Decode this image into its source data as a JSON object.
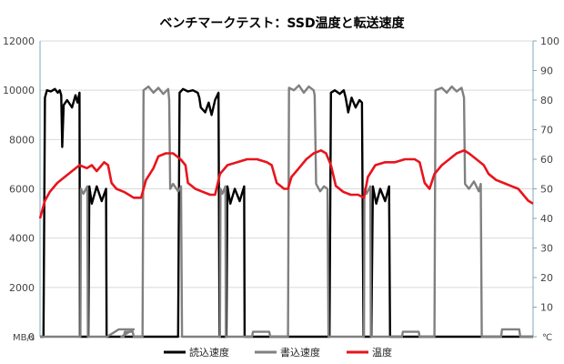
{
  "chart_data": {
    "type": "line",
    "title": "ベンチマークテスト：SSD温度と転送速度",
    "y_left_label": "MB/s",
    "y_right_label": "℃",
    "y_left_range": [
      0,
      12000
    ],
    "y_right_range": [
      0,
      100
    ],
    "y_left_ticks": [
      "0",
      "2000",
      "4000",
      "6000",
      "8000",
      "10000",
      "12000"
    ],
    "y_right_ticks": [
      "0",
      "10",
      "20",
      "30",
      "40",
      "50",
      "60",
      "70",
      "80",
      "90",
      "100"
    ],
    "x_range": [
      0,
      100
    ],
    "grid": true,
    "legend_position": "bottom",
    "series": [
      {
        "name": "読込速度",
        "axis": "left",
        "color": "#000000",
        "points": [
          [
            0,
            0
          ],
          [
            0.7,
            0
          ],
          [
            1.0,
            9700
          ],
          [
            1.4,
            10000
          ],
          [
            2.2,
            9950
          ],
          [
            3.0,
            10050
          ],
          [
            3.6,
            9900
          ],
          [
            4.0,
            10000
          ],
          [
            4.3,
            9800
          ],
          [
            4.5,
            7700
          ],
          [
            4.8,
            9400
          ],
          [
            5.5,
            9600
          ],
          [
            6.5,
            9300
          ],
          [
            7.2,
            9800
          ],
          [
            7.6,
            9500
          ],
          [
            8.0,
            9900
          ],
          [
            8.1,
            0
          ],
          [
            9.8,
            0
          ],
          [
            10.0,
            6100
          ],
          [
            10.5,
            5400
          ],
          [
            11.5,
            6100
          ],
          [
            12.5,
            5500
          ],
          [
            13.4,
            6000
          ],
          [
            13.5,
            0
          ],
          [
            28.0,
            0
          ],
          [
            28.3,
            9900
          ],
          [
            29.0,
            10050
          ],
          [
            30.0,
            9950
          ],
          [
            31.0,
            10000
          ],
          [
            32.0,
            9900
          ],
          [
            32.3,
            9700
          ],
          [
            32.6,
            9300
          ],
          [
            33.5,
            9100
          ],
          [
            34.2,
            9500
          ],
          [
            34.8,
            9000
          ],
          [
            35.5,
            9600
          ],
          [
            36.2,
            9900
          ],
          [
            36.4,
            0
          ],
          [
            37.8,
            0
          ],
          [
            38.0,
            6100
          ],
          [
            38.6,
            5400
          ],
          [
            39.5,
            6000
          ],
          [
            40.5,
            5500
          ],
          [
            41.4,
            6100
          ],
          [
            41.5,
            0
          ],
          [
            58.7,
            0
          ],
          [
            59.0,
            9900
          ],
          [
            59.8,
            10000
          ],
          [
            60.8,
            9850
          ],
          [
            61.6,
            10000
          ],
          [
            62.0,
            9700
          ],
          [
            62.5,
            9100
          ],
          [
            63.2,
            9700
          ],
          [
            64.0,
            9300
          ],
          [
            64.8,
            9600
          ],
          [
            65.3,
            9500
          ],
          [
            65.6,
            0
          ],
          [
            67.2,
            0
          ],
          [
            67.5,
            6100
          ],
          [
            68.2,
            5400
          ],
          [
            69.0,
            6000
          ],
          [
            70.0,
            5500
          ],
          [
            70.8,
            6100
          ],
          [
            71.0,
            0
          ],
          [
            100,
            0
          ]
        ]
      },
      {
        "name": "書込速度",
        "axis": "left",
        "color": "#808080",
        "points": [
          [
            0,
            0
          ],
          [
            1.0,
            0
          ],
          [
            8.2,
            0
          ],
          [
            8.3,
            6000
          ],
          [
            8.8,
            5800
          ],
          [
            9.6,
            6100
          ],
          [
            9.7,
            0
          ],
          [
            13.6,
            0
          ],
          [
            16.0,
            300
          ],
          [
            19.0,
            300
          ],
          [
            16.5,
            0
          ],
          [
            17.0,
            0
          ],
          [
            17.2,
            200
          ],
          [
            18.8,
            200
          ],
          [
            19.0,
            0
          ],
          [
            20.8,
            0
          ],
          [
            21.0,
            10000
          ],
          [
            22.0,
            10150
          ],
          [
            23.0,
            9900
          ],
          [
            24.0,
            10100
          ],
          [
            25.0,
            9850
          ],
          [
            26.0,
            10050
          ],
          [
            26.2,
            9600
          ],
          [
            26.4,
            6000
          ],
          [
            27.0,
            6200
          ],
          [
            28.0,
            5900
          ],
          [
            28.6,
            6100
          ],
          [
            28.8,
            0
          ],
          [
            36.5,
            0
          ],
          [
            36.6,
            6000
          ],
          [
            37.0,
            5800
          ],
          [
            37.6,
            6100
          ],
          [
            37.7,
            0
          ],
          [
            41.6,
            0
          ],
          [
            43.0,
            0
          ],
          [
            43.2,
            200
          ],
          [
            46.5,
            200
          ],
          [
            46.7,
            0
          ],
          [
            50.3,
            0
          ],
          [
            50.5,
            10100
          ],
          [
            51.5,
            10000
          ],
          [
            52.5,
            10200
          ],
          [
            53.5,
            9900
          ],
          [
            54.5,
            10150
          ],
          [
            55.5,
            10000
          ],
          [
            55.7,
            9800
          ],
          [
            56.0,
            6200
          ],
          [
            56.8,
            5900
          ],
          [
            57.6,
            6100
          ],
          [
            58.3,
            6000
          ],
          [
            58.5,
            0
          ],
          [
            65.7,
            0
          ],
          [
            65.8,
            6000
          ],
          [
            66.2,
            5800
          ],
          [
            67.0,
            6100
          ],
          [
            67.1,
            0
          ],
          [
            71.1,
            0
          ],
          [
            73.4,
            0
          ],
          [
            73.6,
            200
          ],
          [
            76.8,
            200
          ],
          [
            77.0,
            0
          ],
          [
            80.0,
            0
          ],
          [
            80.2,
            10000
          ],
          [
            81.5,
            10100
          ],
          [
            82.5,
            9900
          ],
          [
            83.5,
            10150
          ],
          [
            84.5,
            9950
          ],
          [
            85.5,
            10100
          ],
          [
            86.0,
            9700
          ],
          [
            86.2,
            6200
          ],
          [
            87.0,
            6000
          ],
          [
            88.0,
            6300
          ],
          [
            89.0,
            5900
          ],
          [
            89.4,
            6200
          ],
          [
            89.6,
            0
          ],
          [
            93.5,
            0
          ],
          [
            93.7,
            300
          ],
          [
            97.2,
            300
          ],
          [
            97.4,
            0
          ],
          [
            100,
            0
          ]
        ]
      },
      {
        "name": "温度",
        "axis": "right",
        "color": "#e8141c",
        "points": [
          [
            0,
            40
          ],
          [
            1.0,
            46
          ],
          [
            2.0,
            49
          ],
          [
            3.5,
            52
          ],
          [
            5.0,
            54
          ],
          [
            6.5,
            56
          ],
          [
            8.0,
            58
          ],
          [
            9.5,
            57
          ],
          [
            10.5,
            58
          ],
          [
            11.5,
            56
          ],
          [
            13.0,
            59
          ],
          [
            13.8,
            58
          ],
          [
            14.5,
            52
          ],
          [
            15.5,
            50
          ],
          [
            17.0,
            49
          ],
          [
            18.0,
            48
          ],
          [
            19.0,
            47
          ],
          [
            20.5,
            47
          ],
          [
            21.5,
            53
          ],
          [
            23.0,
            57
          ],
          [
            24.0,
            61
          ],
          [
            25.5,
            62
          ],
          [
            27.0,
            62
          ],
          [
            28.5,
            60
          ],
          [
            29.5,
            58
          ],
          [
            30.0,
            52
          ],
          [
            31.5,
            50
          ],
          [
            33.0,
            49
          ],
          [
            34.5,
            48
          ],
          [
            35.5,
            48
          ],
          [
            36.5,
            55
          ],
          [
            38.0,
            58
          ],
          [
            40.0,
            59
          ],
          [
            42.0,
            60
          ],
          [
            44.0,
            60
          ],
          [
            46.0,
            59
          ],
          [
            47.0,
            58
          ],
          [
            48.0,
            52
          ],
          [
            49.5,
            50
          ],
          [
            50.3,
            50
          ],
          [
            51.0,
            54
          ],
          [
            52.5,
            57
          ],
          [
            54.0,
            60
          ],
          [
            55.5,
            62
          ],
          [
            57.0,
            63
          ],
          [
            58.0,
            62
          ],
          [
            59.0,
            58
          ],
          [
            60.0,
            51
          ],
          [
            61.5,
            49
          ],
          [
            63.0,
            48
          ],
          [
            64.5,
            48
          ],
          [
            65.7,
            47
          ],
          [
            66.5,
            54
          ],
          [
            68.0,
            58
          ],
          [
            70.0,
            59
          ],
          [
            72.0,
            59
          ],
          [
            74.0,
            60
          ],
          [
            76.0,
            60
          ],
          [
            77.0,
            59
          ],
          [
            78.0,
            52
          ],
          [
            79.0,
            50
          ],
          [
            80.0,
            55
          ],
          [
            81.5,
            58
          ],
          [
            83.0,
            60
          ],
          [
            84.5,
            62
          ],
          [
            86.0,
            63
          ],
          [
            87.0,
            62
          ],
          [
            88.5,
            60
          ],
          [
            90.0,
            58
          ],
          [
            91.0,
            55
          ],
          [
            92.5,
            53
          ],
          [
            94.0,
            52
          ],
          [
            95.5,
            51
          ],
          [
            97.0,
            50
          ],
          [
            98.0,
            48
          ],
          [
            99.0,
            46
          ],
          [
            100,
            45
          ]
        ]
      }
    ]
  }
}
